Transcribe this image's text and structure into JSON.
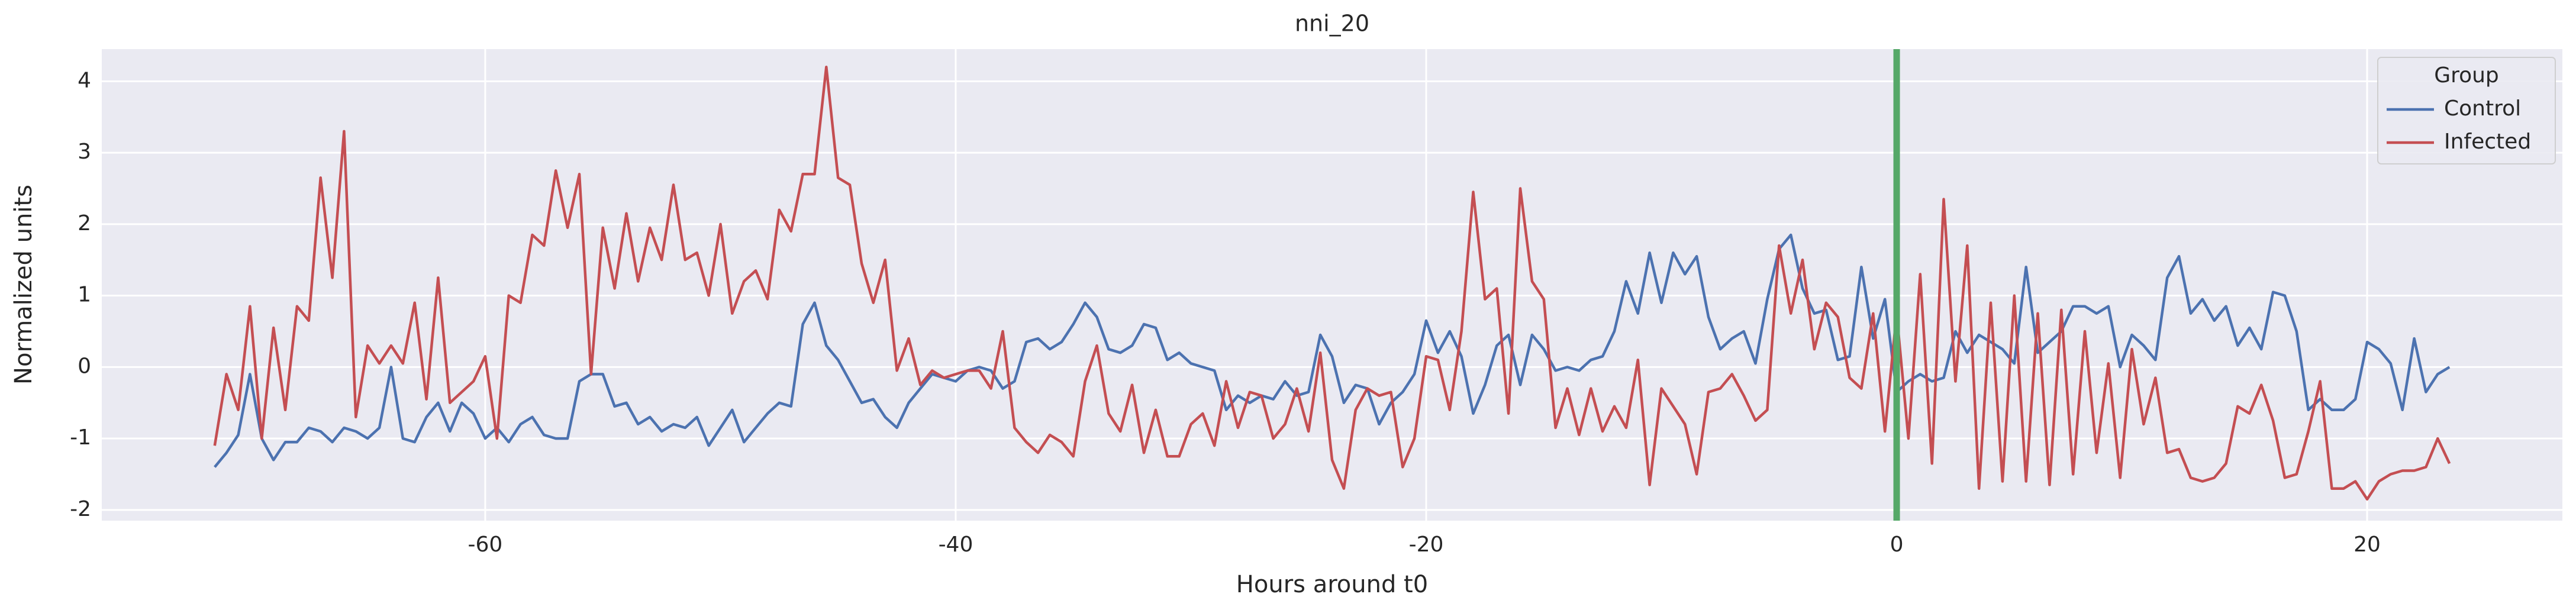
{
  "chart_data": {
    "type": "line",
    "title": "nni_20",
    "xlabel": "Hours around t0",
    "ylabel": "Normalized units",
    "x": [
      -71.5,
      -71,
      -70.5,
      -70,
      -69.5,
      -69,
      -68.5,
      -68,
      -67.5,
      -67,
      -66.5,
      -66,
      -65.5,
      -65,
      -64.5,
      -64,
      -63.5,
      -63,
      -62.5,
      -62,
      -61.5,
      -61,
      -60.5,
      -60,
      -59.5,
      -59,
      -58.5,
      -58,
      -57.5,
      -57,
      -56.5,
      -56,
      -55.5,
      -55,
      -54.5,
      -54,
      -53.5,
      -53,
      -52.5,
      -52,
      -51.5,
      -51,
      -50.5,
      -50,
      -49.5,
      -49,
      -48.5,
      -48,
      -47.5,
      -47,
      -46.5,
      -46,
      -45.5,
      -45,
      -44.5,
      -44,
      -43.5,
      -43,
      -42.5,
      -42,
      -41.5,
      -41,
      -40.5,
      -40,
      -39.5,
      -39,
      -38.5,
      -38,
      -37.5,
      -37,
      -36.5,
      -36,
      -35.5,
      -35,
      -34.5,
      -34,
      -33.5,
      -33,
      -32.5,
      -32,
      -31.5,
      -31,
      -30.5,
      -30,
      -29.5,
      -29,
      -28.5,
      -28,
      -27.5,
      -27,
      -26.5,
      -26,
      -25.5,
      -25,
      -24.5,
      -24,
      -23.5,
      -23,
      -22.5,
      -22,
      -21.5,
      -21,
      -20.5,
      -20,
      -19.5,
      -19,
      -18.5,
      -18,
      -17.5,
      -17,
      -16.5,
      -16,
      -15.5,
      -15,
      -14.5,
      -14,
      -13.5,
      -13,
      -12.5,
      -12,
      -11.5,
      -11,
      -10.5,
      -10,
      -9.5,
      -9,
      -8.5,
      -8,
      -7.5,
      -7,
      -6.5,
      -6,
      -5.5,
      -5,
      -4.5,
      -4,
      -3.5,
      -3,
      -2.5,
      -2,
      -1.5,
      -1,
      -0.5,
      0,
      0.5,
      1,
      1.5,
      2,
      2.5,
      3,
      3.5,
      4,
      4.5,
      5,
      5.5,
      6,
      6.5,
      7,
      7.5,
      8,
      8.5,
      9,
      9.5,
      10,
      10.5,
      11,
      11.5,
      12,
      12.5,
      13,
      13.5,
      14,
      14.5,
      15,
      15.5,
      16,
      16.5,
      17,
      17.5,
      18,
      18.5,
      19,
      19.5,
      20,
      20.5,
      21,
      21.5,
      22,
      22.5,
      23,
      23.5
    ],
    "series": [
      {
        "name": "Control",
        "color": "#4c72b0",
        "values": [
          -1.4,
          -1.2,
          -0.95,
          -0.1,
          -1.0,
          -1.3,
          -1.05,
          -1.05,
          -0.85,
          -0.9,
          -1.05,
          -0.85,
          -0.9,
          -1.0,
          -0.85,
          0.0,
          -1.0,
          -1.05,
          -0.7,
          -0.5,
          -0.9,
          -0.5,
          -0.65,
          -1.0,
          -0.85,
          -1.05,
          -0.8,
          -0.7,
          -0.95,
          -1.0,
          -1.0,
          -0.2,
          -0.1,
          -0.1,
          -0.55,
          -0.5,
          -0.8,
          -0.7,
          -0.9,
          -0.8,
          -0.85,
          -0.7,
          -1.1,
          -0.85,
          -0.6,
          -1.05,
          -0.85,
          -0.65,
          -0.5,
          -0.55,
          0.6,
          0.9,
          0.3,
          0.1,
          -0.2,
          -0.5,
          -0.45,
          -0.7,
          -0.85,
          -0.5,
          -0.3,
          -0.1,
          -0.15,
          -0.2,
          -0.05,
          0.0,
          -0.05,
          -0.3,
          -0.2,
          0.35,
          0.4,
          0.25,
          0.35,
          0.6,
          0.9,
          0.7,
          0.25,
          0.2,
          0.3,
          0.6,
          0.55,
          0.1,
          0.2,
          0.05,
          0.0,
          -0.05,
          -0.6,
          -0.4,
          -0.5,
          -0.4,
          -0.45,
          -0.2,
          -0.4,
          -0.35,
          0.45,
          0.15,
          -0.5,
          -0.25,
          -0.3,
          -0.8,
          -0.5,
          -0.35,
          -0.1,
          0.65,
          0.2,
          0.5,
          0.15,
          -0.65,
          -0.25,
          0.3,
          0.45,
          -0.25,
          0.45,
          0.25,
          -0.05,
          0.0,
          -0.05,
          0.1,
          0.15,
          0.5,
          1.2,
          0.75,
          1.6,
          0.9,
          1.6,
          1.3,
          1.55,
          0.7,
          0.25,
          0.4,
          0.5,
          0.05,
          0.95,
          1.65,
          1.85,
          1.1,
          0.75,
          0.8,
          0.1,
          0.15,
          1.4,
          0.4,
          0.95,
          -0.35,
          -0.2,
          -0.1,
          -0.2,
          -0.15,
          0.5,
          0.2,
          0.45,
          0.35,
          0.25,
          0.05,
          1.4,
          0.2,
          0.35,
          0.5,
          0.85,
          0.85,
          0.75,
          0.85,
          0.0,
          0.45,
          0.3,
          0.1,
          1.25,
          1.55,
          0.75,
          0.95,
          0.65,
          0.85,
          0.3,
          0.55,
          0.25,
          1.05,
          1.0,
          0.5,
          -0.6,
          -0.45,
          -0.6,
          -0.6,
          -0.45,
          0.35,
          0.25,
          0.05,
          -0.6,
          0.4,
          -0.35,
          -0.1,
          0.0
        ]
      },
      {
        "name": "Infected",
        "color": "#c44e52",
        "values": [
          -1.1,
          -0.1,
          -0.6,
          0.85,
          -1.0,
          0.55,
          -0.6,
          0.85,
          0.65,
          2.65,
          1.25,
          3.3,
          -0.7,
          0.3,
          0.05,
          0.3,
          0.05,
          0.9,
          -0.45,
          1.25,
          -0.5,
          -0.35,
          -0.2,
          0.15,
          -1.0,
          1.0,
          0.9,
          1.85,
          1.7,
          2.75,
          1.95,
          2.7,
          -0.1,
          1.95,
          1.1,
          2.15,
          1.2,
          1.95,
          1.5,
          2.55,
          1.5,
          1.6,
          1.0,
          2.0,
          0.75,
          1.2,
          1.35,
          0.95,
          2.2,
          1.9,
          2.7,
          2.7,
          4.2,
          2.65,
          2.55,
          1.45,
          0.9,
          1.5,
          -0.05,
          0.4,
          -0.25,
          -0.05,
          -0.15,
          -0.1,
          -0.05,
          -0.05,
          -0.3,
          0.5,
          -0.85,
          -1.05,
          -1.2,
          -0.95,
          -1.05,
          -1.25,
          -0.2,
          0.3,
          -0.65,
          -0.9,
          -0.25,
          -1.2,
          -0.6,
          -1.25,
          -1.25,
          -0.8,
          -0.65,
          -1.1,
          -0.2,
          -0.85,
          -0.35,
          -0.4,
          -1.0,
          -0.8,
          -0.3,
          -0.9,
          0.2,
          -1.3,
          -1.7,
          -0.6,
          -0.3,
          -0.4,
          -0.35,
          -1.4,
          -1.0,
          0.15,
          0.1,
          -0.6,
          0.5,
          2.45,
          0.95,
          1.1,
          -0.65,
          2.5,
          1.2,
          0.95,
          -0.85,
          -0.3,
          -0.95,
          -0.3,
          -0.9,
          -0.55,
          -0.85,
          0.1,
          -1.65,
          -0.3,
          -0.55,
          -0.8,
          -1.5,
          -0.35,
          -0.3,
          -0.1,
          -0.4,
          -0.75,
          -0.6,
          1.7,
          0.75,
          1.5,
          0.25,
          0.9,
          0.7,
          -0.15,
          -0.3,
          0.75,
          -0.9,
          0.75,
          -1.0,
          1.3,
          -1.35,
          2.35,
          -0.2,
          1.7,
          -1.7,
          0.9,
          -1.6,
          1.0,
          -1.6,
          0.75,
          -1.65,
          0.8,
          -1.5,
          0.5,
          -1.2,
          0.05,
          -1.55,
          0.25,
          -0.8,
          -0.15,
          -1.2,
          -1.15,
          -1.55,
          -1.6,
          -1.55,
          -1.35,
          -0.55,
          -0.65,
          -0.25,
          -0.75,
          -1.55,
          -1.5,
          -0.9,
          -0.2,
          -1.7,
          -1.7,
          -1.6,
          -1.85,
          -1.6,
          -1.5,
          -1.45,
          -1.45,
          -1.4,
          -1.0,
          -1.35
        ]
      }
    ],
    "vline": {
      "x": 0,
      "color": "#55a868"
    },
    "xlim": [
      -76.3,
      28.3
    ],
    "ylim": [
      -2.15,
      4.45
    ],
    "xticks": [
      -60,
      -40,
      -20,
      0,
      20
    ],
    "yticks": [
      -2,
      -1,
      0,
      1,
      2,
      3,
      4
    ],
    "grid": true,
    "legend_title": "Group",
    "legend": "upper right"
  }
}
